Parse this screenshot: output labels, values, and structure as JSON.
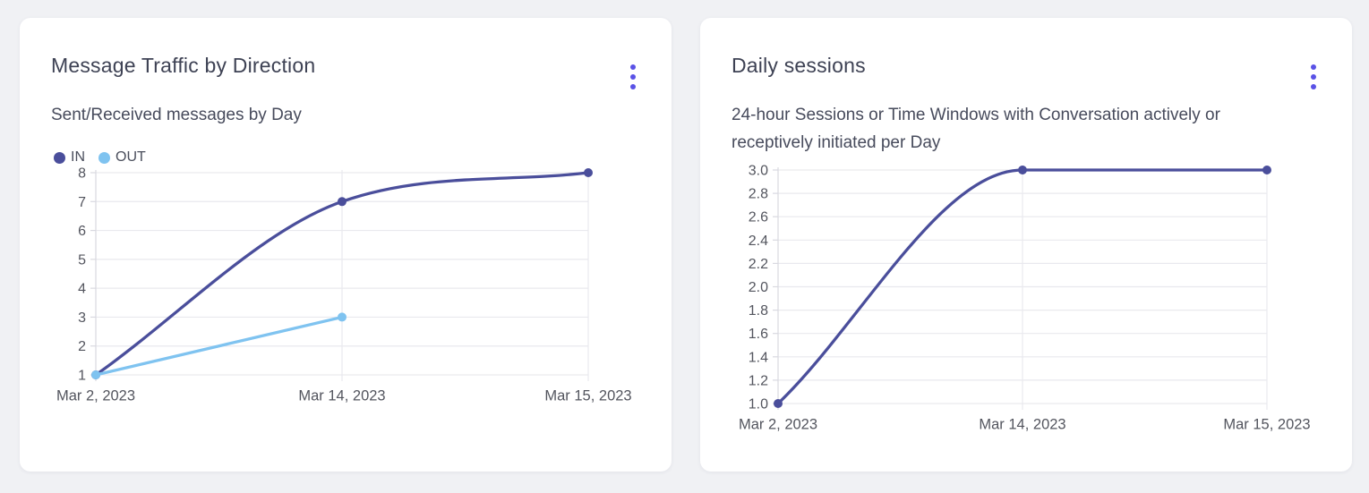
{
  "theme": {
    "page_background": "#f0f1f4",
    "card_background": "#ffffff",
    "accent": "#5a52e6",
    "grid_color": "#e9e9ee",
    "axis_color": "#d9d9e0",
    "tick_label_color": "#53555e",
    "title_color": "#3e4254"
  },
  "chart_data": [
    {
      "type": "line",
      "title": "Message Traffic by Direction",
      "subtitle": "Sent/Received messages by Day",
      "x": [
        "Mar 2, 2023",
        "Mar 14, 2023",
        "Mar 15, 2023"
      ],
      "series": [
        {
          "name": "IN",
          "values": [
            1,
            7,
            8
          ],
          "color": "#4a4e9b"
        },
        {
          "name": "OUT",
          "values": [
            1,
            3,
            null
          ],
          "color": "#7fc3f0"
        }
      ],
      "ylim": [
        1,
        8
      ],
      "ytick_labels": [
        "1",
        "2",
        "3",
        "4",
        "5",
        "6",
        "7",
        "8"
      ],
      "legend_position": "top-left",
      "grid": true
    },
    {
      "type": "line",
      "title": "Daily sessions",
      "subtitle": "24-hour Sessions or Time Windows with Conversation actively or receptively initiated per Day",
      "x": [
        "Mar 2, 2023",
        "Mar 14, 2023",
        "Mar 15, 2023"
      ],
      "series": [
        {
          "values": [
            1.0,
            3.0,
            3.0
          ],
          "color": "#4a4e9b"
        }
      ],
      "ylim": [
        1.0,
        3.0
      ],
      "ytick_labels": [
        "1.0",
        "1.2",
        "1.4",
        "1.6",
        "1.8",
        "2.0",
        "2.2",
        "2.4",
        "2.6",
        "2.8",
        "3.0"
      ],
      "legend_position": "none",
      "grid": true
    }
  ]
}
